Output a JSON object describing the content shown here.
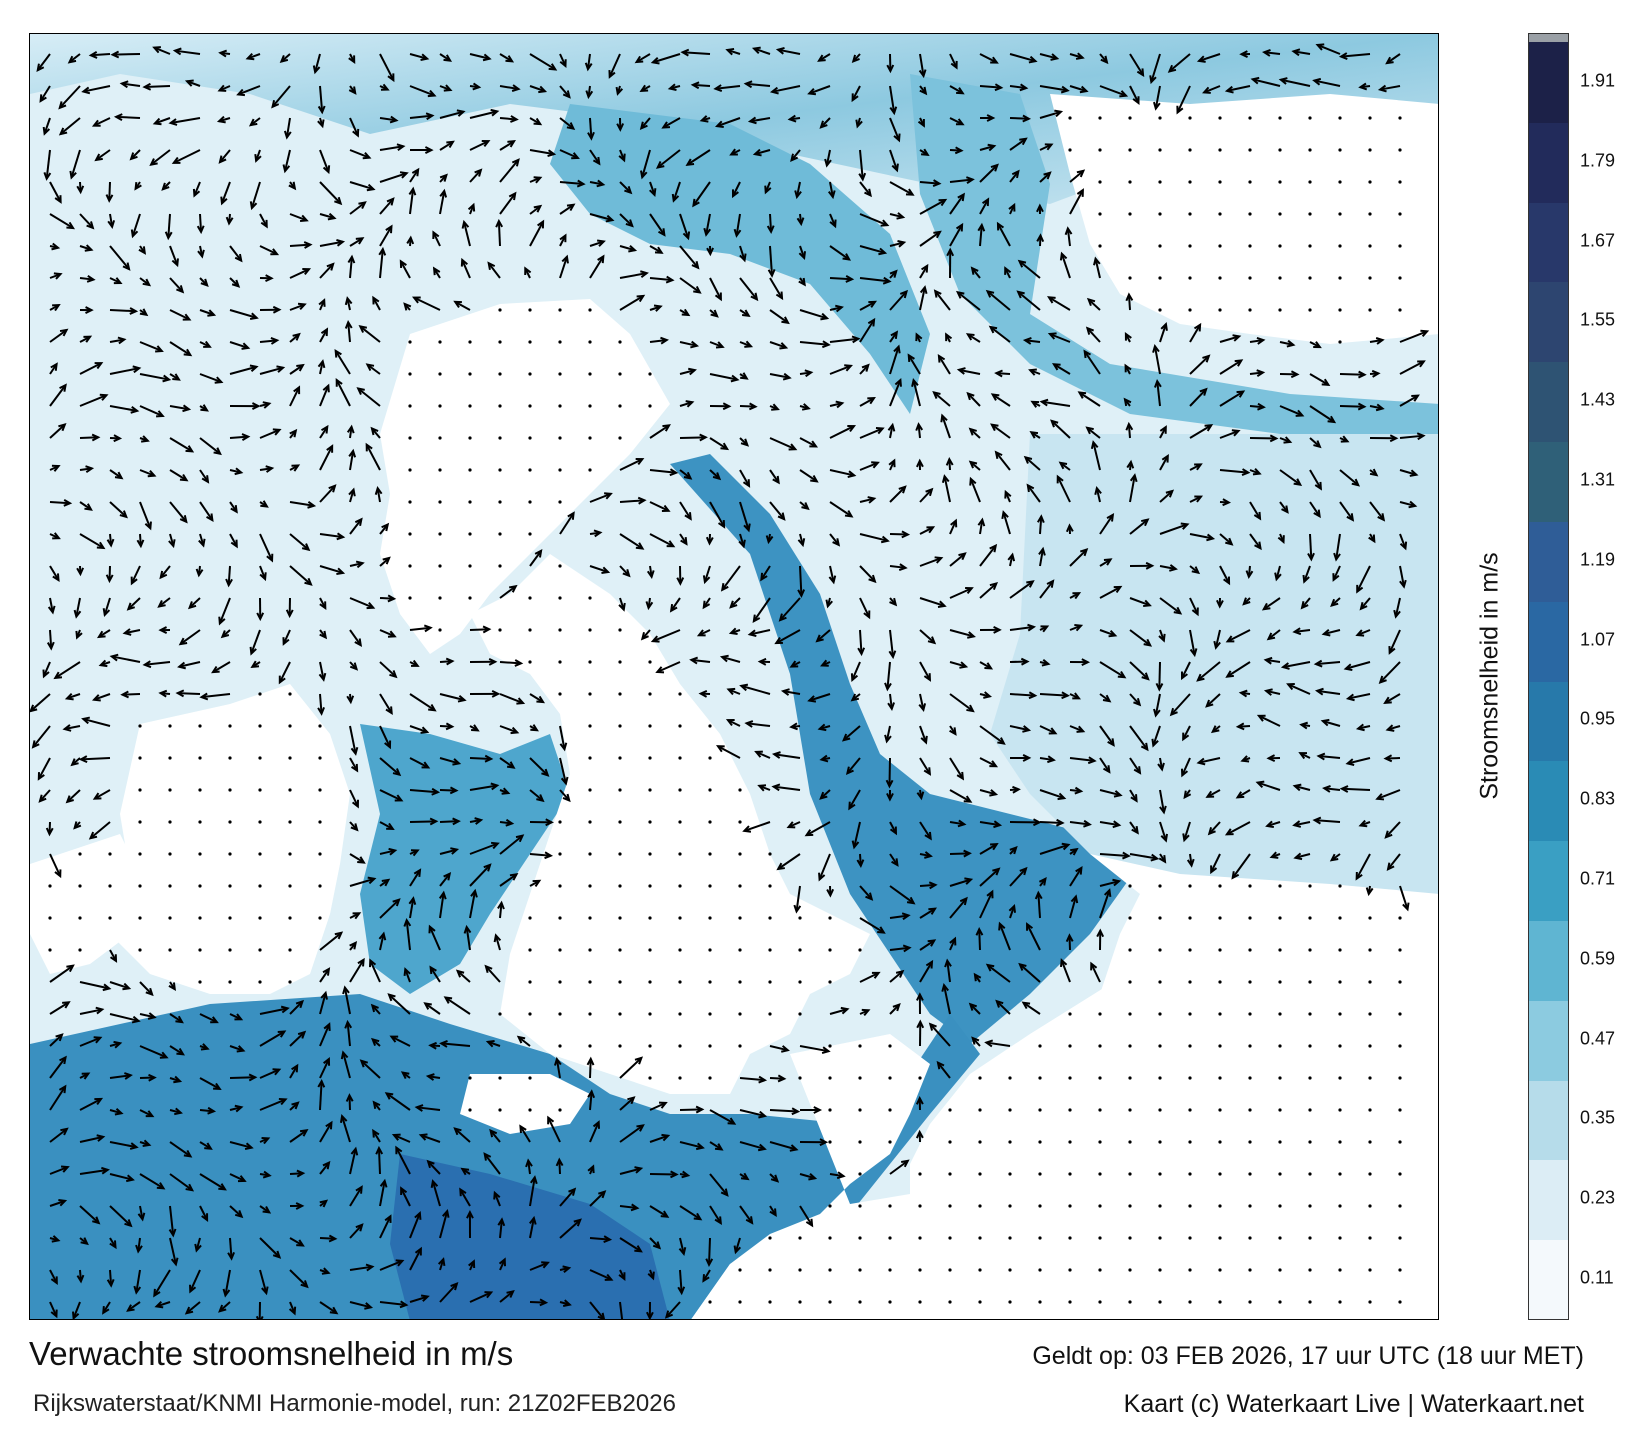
{
  "map": {
    "title": "Verwachte stroomsnelheid in m/s",
    "subtitle": "Rijkswaterstaat/KNMI Harmonie-model, run: 21Z02FEB2026",
    "valid_time": "Geldt op: 03 FEB 2026, 17 uur UTC (18 uur MET)",
    "credit": "Kaart (c) Waterkaart Live | Waterkaart.net",
    "colorbar_label": "Stroomsnelheid in m/s",
    "colorbar_ticks": [
      "0.11",
      "0.23",
      "0.35",
      "0.47",
      "0.59",
      "0.71",
      "0.83",
      "0.95",
      "1.07",
      "1.19",
      "1.31",
      "1.43",
      "1.55",
      "1.67",
      "1.79",
      "1.91"
    ],
    "colorbar_colors": [
      "#f4f9fc",
      "#dcedf5",
      "#b6dcea",
      "#8ccbe0",
      "#5fb5d2",
      "#3a9fc3",
      "#2a8bb5",
      "#2779aa",
      "#2a68a3",
      "#2f5d97",
      "#2f6078",
      "#2e5373",
      "#2d4570",
      "#28386a",
      "#222b5b",
      "#1c2148"
    ],
    "colors": {
      "land": "#ffffff",
      "water_light": "#e4f3f9",
      "water_mid": "#5db4d3",
      "water_strong": "#2a6eb0",
      "arrow": "#000000"
    }
  }
}
